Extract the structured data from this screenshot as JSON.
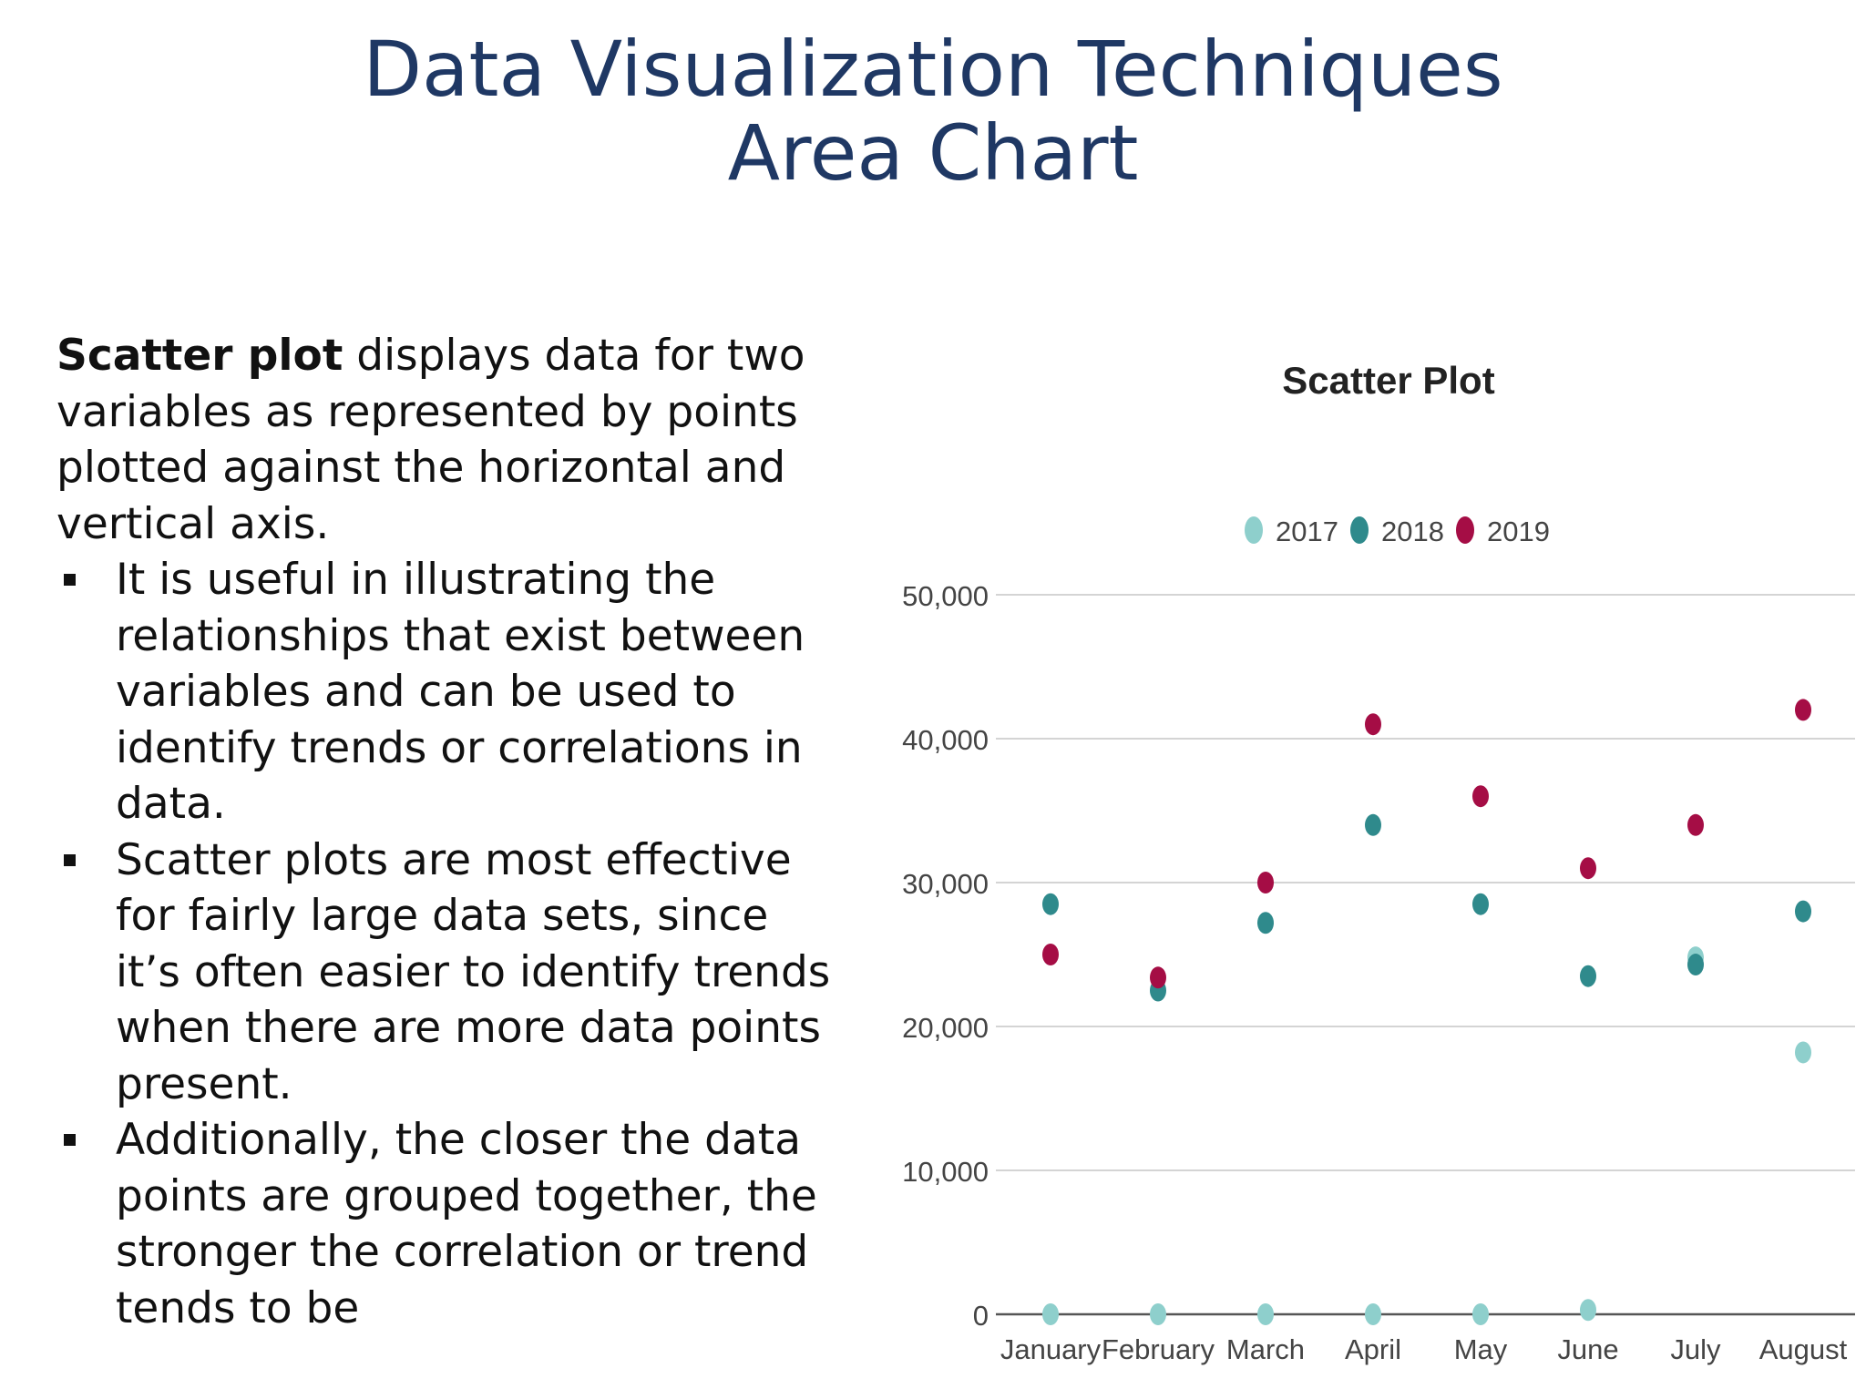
{
  "slide": {
    "title_line1": "Data Visualization Techniques",
    "title_line2": "Area Chart"
  },
  "body": {
    "intro_bold": "Scatter plot",
    "intro_rest": " displays data for two variables as represented by points plotted against the horizontal and vertical axis.",
    "bullets": [
      "It is useful in illustrating the relationships that exist between variables and can be used to identify trends or correlations in data.",
      "Scatter plots are most effective for fairly large data sets, since it’s often easier to identify trends when there are more data points present.",
      " Additionally, the closer the data points are grouped together, the stronger the correlation or trend tends to be"
    ]
  },
  "chart_data": {
    "type": "scatter",
    "title": "Scatter Plot",
    "xlabel": "",
    "ylabel": "",
    "categories": [
      "January",
      "February",
      "March",
      "April",
      "May",
      "June",
      "July",
      "August"
    ],
    "ylim": [
      0,
      50000
    ],
    "yticks": [
      0,
      10000,
      20000,
      30000,
      40000,
      50000
    ],
    "ytick_labels": [
      "0",
      "10,000",
      "20,000",
      "30,000",
      "40,000",
      "50,000"
    ],
    "grid": true,
    "legend_position": "top-center",
    "series": [
      {
        "name": "2017",
        "color": "#8ecfcc",
        "values": [
          0,
          0,
          0,
          0,
          0,
          300,
          24800,
          18200
        ]
      },
      {
        "name": "2018",
        "color": "#2f8a8c",
        "values": [
          28500,
          22500,
          27200,
          34000,
          28500,
          23500,
          24300,
          28000
        ]
      },
      {
        "name": "2019",
        "color": "#a50d45",
        "values": [
          25000,
          23400,
          30000,
          41000,
          36000,
          31000,
          34000,
          42000
        ]
      }
    ]
  }
}
